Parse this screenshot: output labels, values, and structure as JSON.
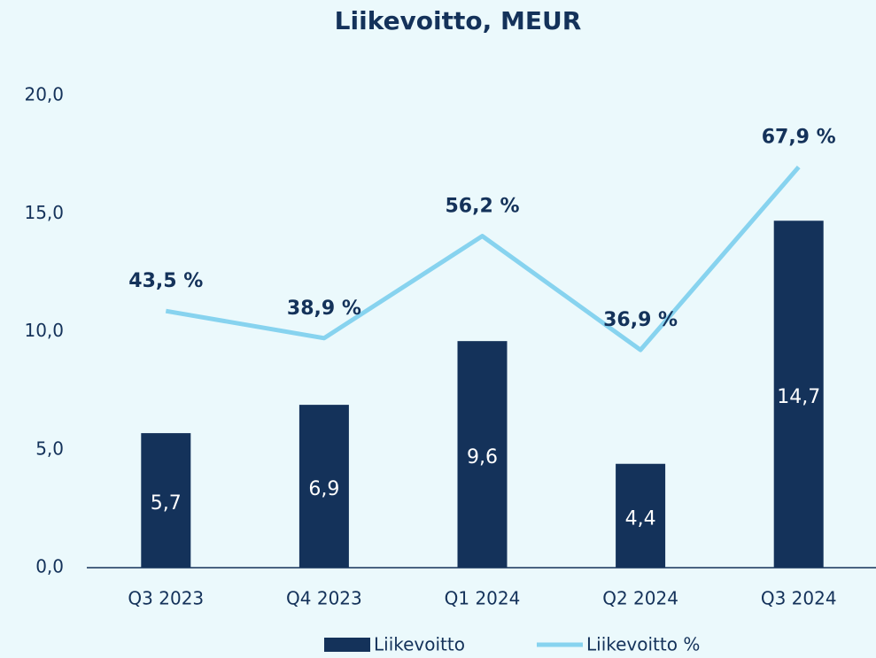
{
  "chart_data": {
    "type": "bar_line",
    "title": "Liikevoitto, MEUR",
    "categories": [
      "Q3 2023",
      "Q4 2023",
      "Q1 2024",
      "Q2 2024",
      "Q3 2024"
    ],
    "series": [
      {
        "name": "Liikevoitto",
        "type": "bar",
        "color": "#14325a",
        "values": [
          5.7,
          6.9,
          9.6,
          4.4,
          14.7
        ],
        "value_labels": [
          "5,7",
          "6,9",
          "9,6",
          "4,4",
          "14,7"
        ]
      },
      {
        "name": "Liikevoitto %",
        "type": "line",
        "axis": "y2",
        "color": "#87d3ef",
        "values": [
          43.5,
          38.9,
          56.2,
          36.9,
          67.9
        ],
        "value_labels": [
          "43,5 %",
          "38,9 %",
          "56,2 %",
          "36,9 %",
          "67,9 %"
        ]
      }
    ],
    "ylim": [
      0,
      20
    ],
    "yticks": [
      {
        "value": 0,
        "label": "0,0"
      },
      {
        "value": 5,
        "label": "5,0"
      },
      {
        "value": 10,
        "label": "10,0"
      },
      {
        "value": 15,
        "label": "15,0"
      },
      {
        "value": 20,
        "label": "20,0"
      }
    ],
    "y2lim": [
      0,
      80
    ],
    "legend": "bottom"
  }
}
